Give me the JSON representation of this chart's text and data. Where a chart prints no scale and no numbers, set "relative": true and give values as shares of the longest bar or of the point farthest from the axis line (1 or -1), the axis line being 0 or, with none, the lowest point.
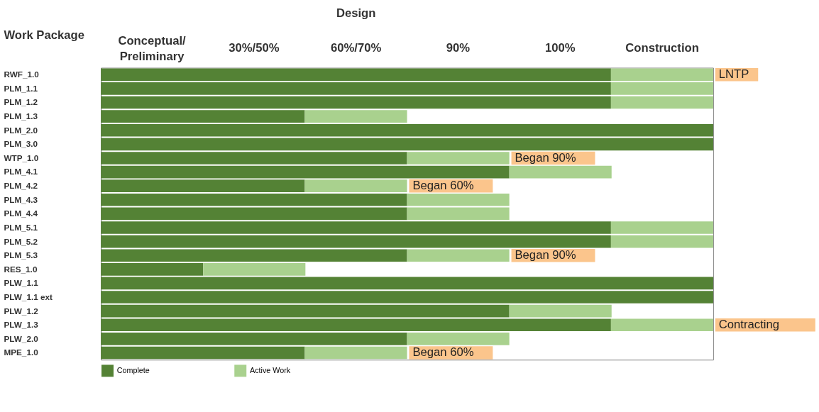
{
  "chart_data": {
    "type": "bar",
    "orientation": "horizontal",
    "stacked": true,
    "relative": true,
    "ylabel": "Work Package",
    "categories": [
      "RWF_1.0",
      "PLM_1.1",
      "PLM_1.2",
      "PLM_1.3",
      "PLM_2.0",
      "PLM_3.0",
      "WTP_1.0",
      "PLM_4.1",
      "PLM_4.2",
      "PLM_4.3",
      "PLM_4.4",
      "PLM_5.1",
      "PLM_5.2",
      "PLM_5.3",
      "RES_1.0",
      "PLW_1.1",
      "PLW_1.1 ext",
      "PLW_1.2",
      "PLW_1.3",
      "PLW_2.0",
      "MPE_1.0"
    ],
    "series": [
      {
        "name": "Complete",
        "color": "#548235",
        "values": [
          0.833,
          0.833,
          0.833,
          0.333,
          1,
          1,
          0.5,
          0.667,
          0.333,
          0.5,
          0.5,
          0.833,
          0.833,
          0.5,
          0.167,
          1,
          1,
          0.667,
          0.833,
          0.5,
          0.333
        ]
      },
      {
        "name": "Active Work",
        "color": "#a9d18e",
        "values": [
          0.167,
          0.167,
          0.167,
          0.167,
          0,
          0,
          0.167,
          0.167,
          0.167,
          0.167,
          0.167,
          0.167,
          0.167,
          0.167,
          0.167,
          0,
          0,
          0.167,
          0.167,
          0.167,
          0.167
        ]
      }
    ],
    "annotations": [
      "Design",
      "Conceptual/\nPreliminary",
      "30%/50%",
      "60%/70%",
      "90%",
      "100%",
      "Construction",
      {
        "text": "LNTP",
        "x": 1,
        "y": "RWF_1.0"
      },
      {
        "text": "Began 90%",
        "x": 0.667,
        "y": "WTP_1.0"
      },
      {
        "text": "Began 60%",
        "x": 0.5,
        "y": "PLM_4.2"
      },
      {
        "text": "Began 90%",
        "x": 0.667,
        "y": "PLM_5.3"
      },
      {
        "text": "Contracting",
        "x": 1,
        "y": "PLW_1.3"
      },
      {
        "text": "Began 60%",
        "x": 0.5,
        "y": "MPE_1.0"
      }
    ],
    "grid": false,
    "legend": "bottom"
  }
}
